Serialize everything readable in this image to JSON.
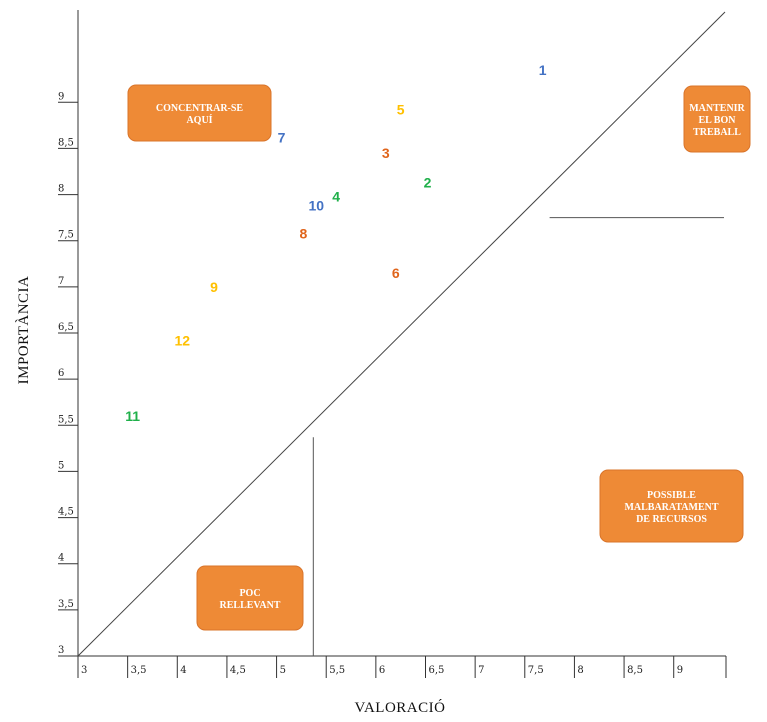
{
  "chart_data": {
    "type": "scatter",
    "xlabel": "VALORACIÓ",
    "ylabel": "IMPORTÀNCIA",
    "xlim": [
      3,
      10
    ],
    "ylim": [
      3,
      10
    ],
    "x_ticks": [
      "3",
      "3,5",
      "4",
      "4,5",
      "5",
      "5,5",
      "6",
      "6,5",
      "7",
      "7,5",
      "8",
      "8,5",
      "9"
    ],
    "y_ticks": [
      "3",
      "3,5",
      "4",
      "4,5",
      "5",
      "5,5",
      "6",
      "6,5",
      "7",
      "7,5",
      "8",
      "8,5",
      "9"
    ],
    "colors": {
      "blue": "#4472c4",
      "orange_dark": "#e0651c",
      "orange_light": "#ffc000",
      "green": "#1fb04a"
    },
    "points": [
      {
        "label": "1",
        "x": 7.68,
        "y": 9.35,
        "color": "#4472c4"
      },
      {
        "label": "2",
        "x": 6.52,
        "y": 8.13,
        "color": "#1fb04a"
      },
      {
        "label": "3",
        "x": 6.1,
        "y": 8.45,
        "color": "#e0651c"
      },
      {
        "label": "4",
        "x": 5.6,
        "y": 7.98,
        "color": "#1fb04a"
      },
      {
        "label": "5",
        "x": 6.25,
        "y": 8.92,
        "color": "#ffc000"
      },
      {
        "label": "6",
        "x": 6.2,
        "y": 7.15,
        "color": "#e0651c"
      },
      {
        "label": "7",
        "x": 5.05,
        "y": 8.62,
        "color": "#4472c4"
      },
      {
        "label": "8",
        "x": 5.27,
        "y": 7.58,
        "color": "#e0651c"
      },
      {
        "label": "9",
        "x": 4.37,
        "y": 7.0,
        "color": "#ffc000"
      },
      {
        "label": "10",
        "x": 5.4,
        "y": 7.88,
        "color": "#4472c4"
      },
      {
        "label": "11",
        "x": 3.55,
        "y": 5.6,
        "color": "#1fb04a"
      },
      {
        "label": "12",
        "x": 4.05,
        "y": 6.42,
        "color": "#ffc000"
      }
    ],
    "diagonal": {
      "from": [
        3,
        3
      ],
      "to": [
        10,
        10
      ]
    },
    "guide_lines": [
      {
        "from": [
          7.75,
          7.75
        ],
        "to": [
          10.0,
          7.75
        ]
      },
      {
        "from": [
          5.37,
          3.0
        ],
        "to": [
          5.37,
          5.37
        ]
      }
    ],
    "zones": [
      {
        "lines": [
          "CONCENTRAR-SE",
          "AQUÍ"
        ]
      },
      {
        "lines": [
          "MANTENIR",
          "EL BON",
          "TREBALL"
        ]
      },
      {
        "lines": [
          "POSSIBLE",
          "MALBARATAMENT",
          "DE RECURSOS"
        ]
      },
      {
        "lines": [
          "POC",
          "RELLEVANT"
        ]
      }
    ]
  }
}
